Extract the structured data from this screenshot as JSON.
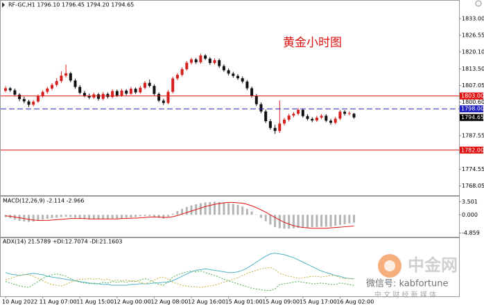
{
  "header": "RF-GC,H1  1796.10 1796.45 1794.20 1794.65",
  "watermark": {
    "title": "中金网",
    "line1": "微信号: kabfortune",
    "line2": "中 文 财 经 新 媒 体"
  },
  "chart_data": [
    {
      "type": "candlestick",
      "title": "黄金小时图",
      "title_color": "#e01010",
      "up_color": "#d62020",
      "down_color": "#111111",
      "categories": [
        "10 Aug 2022",
        null,
        null,
        null,
        null,
        null,
        null,
        null,
        "11 Aug 07:00",
        null,
        null,
        null,
        null,
        null,
        null,
        null,
        "11 Aug 15:00",
        null,
        null,
        null,
        null,
        null,
        null,
        null,
        "12 Aug 00:00",
        null,
        null,
        null,
        null,
        null,
        null,
        null,
        "12 Aug 08:00",
        null,
        null,
        null,
        null,
        null,
        null,
        null,
        "12 Aug 16:00",
        null,
        null,
        null,
        null,
        null,
        null,
        null,
        "15 Aug 01:00",
        null,
        null,
        null,
        null,
        null,
        null,
        null,
        "15 Aug 09:00",
        null,
        null,
        null,
        null,
        null,
        null,
        null,
        "15 Aug 17:00",
        null,
        null,
        null,
        null,
        null,
        null,
        null,
        "16 Aug 02:00",
        null,
        null,
        null
      ],
      "ohlc": [
        [
          1805.0,
          1806.8,
          1804.4,
          1806.0
        ],
        [
          1806.0,
          1806.5,
          1804.6,
          1805.2
        ],
        [
          1805.2,
          1805.9,
          1802.8,
          1803.5
        ],
        [
          1803.5,
          1804.1,
          1801.0,
          1801.8
        ],
        [
          1801.8,
          1802.7,
          1800.2,
          1800.9
        ],
        [
          1800.9,
          1801.5,
          1798.7,
          1799.6
        ],
        [
          1799.6,
          1801.4,
          1799.0,
          1800.8
        ],
        [
          1800.8,
          1803.6,
          1800.3,
          1803.0
        ],
        [
          1803.0,
          1805.2,
          1802.4,
          1804.6
        ],
        [
          1804.6,
          1806.5,
          1803.9,
          1805.9
        ],
        [
          1805.9,
          1808.0,
          1805.2,
          1807.3
        ],
        [
          1807.3,
          1809.9,
          1806.6,
          1808.8
        ],
        [
          1808.8,
          1812.6,
          1808.1,
          1810.9
        ],
        [
          1810.9,
          1815.2,
          1810.2,
          1811.8
        ],
        [
          1811.8,
          1812.4,
          1808.3,
          1809.0
        ],
        [
          1809.0,
          1809.7,
          1805.8,
          1806.5
        ],
        [
          1806.5,
          1807.2,
          1803.6,
          1804.2
        ],
        [
          1804.2,
          1805.0,
          1802.5,
          1803.1
        ],
        [
          1803.1,
          1803.9,
          1801.7,
          1802.4
        ],
        [
          1802.4,
          1804.3,
          1801.8,
          1803.6
        ],
        [
          1803.6,
          1804.2,
          1801.2,
          1801.9
        ],
        [
          1801.9,
          1804.5,
          1801.3,
          1803.8
        ],
        [
          1803.8,
          1804.4,
          1802.0,
          1802.6
        ],
        [
          1802.6,
          1805.6,
          1802.1,
          1804.9
        ],
        [
          1804.9,
          1805.5,
          1802.6,
          1803.2
        ],
        [
          1803.2,
          1805.8,
          1802.7,
          1805.1
        ],
        [
          1805.1,
          1805.7,
          1803.3,
          1803.9
        ],
        [
          1803.9,
          1806.5,
          1803.4,
          1805.8
        ],
        [
          1805.8,
          1806.3,
          1803.8,
          1804.4
        ],
        [
          1804.4,
          1806.9,
          1803.9,
          1806.2
        ],
        [
          1806.2,
          1808.8,
          1805.6,
          1808.1
        ],
        [
          1808.1,
          1809.4,
          1806.3,
          1806.9
        ],
        [
          1806.9,
          1807.5,
          1803.2,
          1803.8
        ],
        [
          1803.8,
          1804.4,
          1800.6,
          1801.2
        ],
        [
          1801.2,
          1801.9,
          1799.5,
          1800.3
        ],
        [
          1800.3,
          1805.3,
          1799.8,
          1804.6
        ],
        [
          1804.6,
          1810.5,
          1804.0,
          1809.8
        ],
        [
          1809.8,
          1811.9,
          1809.1,
          1811.2
        ],
        [
          1811.2,
          1814.1,
          1810.6,
          1813.4
        ],
        [
          1813.4,
          1816.6,
          1812.8,
          1815.9
        ],
        [
          1815.9,
          1817.9,
          1815.2,
          1817.2
        ],
        [
          1817.2,
          1817.8,
          1815.4,
          1816.1
        ],
        [
          1816.1,
          1819.4,
          1815.5,
          1818.7
        ],
        [
          1818.7,
          1819.3,
          1816.9,
          1817.5
        ],
        [
          1817.5,
          1818.1,
          1815.1,
          1815.8
        ],
        [
          1815.8,
          1817.6,
          1815.2,
          1816.9
        ],
        [
          1816.9,
          1817.5,
          1813.9,
          1814.6
        ],
        [
          1814.6,
          1815.3,
          1812.4,
          1813.0
        ],
        [
          1813.0,
          1813.7,
          1811.0,
          1811.7
        ],
        [
          1811.7,
          1812.4,
          1810.1,
          1810.8
        ],
        [
          1810.8,
          1811.5,
          1809.2,
          1809.9
        ],
        [
          1809.9,
          1810.6,
          1807.9,
          1808.6
        ],
        [
          1808.6,
          1809.2,
          1805.3,
          1806.0
        ],
        [
          1806.0,
          1806.7,
          1802.4,
          1803.1
        ],
        [
          1803.1,
          1803.8,
          1799.1,
          1799.8
        ],
        [
          1799.8,
          1800.5,
          1796.3,
          1797.0
        ],
        [
          1797.0,
          1797.7,
          1792.5,
          1793.2
        ],
        [
          1793.2,
          1794.0,
          1789.9,
          1790.6
        ],
        [
          1790.6,
          1791.8,
          1788.3,
          1789.4
        ],
        [
          1789.4,
          1801.2,
          1788.6,
          1792.3
        ],
        [
          1792.3,
          1794.5,
          1791.6,
          1793.8
        ],
        [
          1793.8,
          1796.1,
          1793.1,
          1795.4
        ],
        [
          1795.4,
          1796.8,
          1794.7,
          1796.1
        ],
        [
          1796.1,
          1798.3,
          1795.5,
          1797.6
        ],
        [
          1797.6,
          1798.2,
          1794.6,
          1795.2
        ],
        [
          1795.2,
          1795.9,
          1793.5,
          1794.1
        ],
        [
          1794.1,
          1794.8,
          1792.8,
          1793.5
        ],
        [
          1793.5,
          1795.3,
          1792.9,
          1794.6
        ],
        [
          1794.6,
          1796.0,
          1794.0,
          1795.3
        ],
        [
          1795.3,
          1795.9,
          1792.8,
          1793.4
        ],
        [
          1793.4,
          1794.1,
          1791.8,
          1792.6
        ],
        [
          1792.6,
          1794.9,
          1792.0,
          1794.2
        ],
        [
          1794.2,
          1797.6,
          1793.6,
          1796.9
        ],
        [
          1796.9,
          1797.5,
          1795.4,
          1796.1
        ],
        [
          1796.1,
          1797.0,
          1795.5,
          1796.3
        ],
        [
          1796.1,
          1796.45,
          1794.2,
          1794.65
        ]
      ],
      "ylim": [
        1765,
        1836.5
      ],
      "yticks": [
        {
          "value": 1833,
          "label": "1833.00"
        },
        1826.55,
        {
          "value": 1820.1,
          "label": "1820.10"
        },
        {
          "value": 1813.5,
          "label": "1813.50"
        },
        1807.05,
        {
          "value": 1800.6,
          "label": "1800.60"
        },
        1787.55,
        1774.55,
        1768.05
      ],
      "levels": [
        {
          "value": 1803,
          "label": "1803.00",
          "color": "#e01010",
          "style": "solid"
        },
        {
          "value": 1798,
          "label": "1798.00",
          "color": "#2020c0",
          "style": "dashed"
        },
        {
          "value": 1794.65,
          "color": "#000000",
          "style": "none"
        },
        {
          "value": 1782,
          "label": "1782.00",
          "color": "#e01010",
          "style": "solid"
        }
      ]
    },
    {
      "type": "macd",
      "label": "MACD(12,26,9) -2.114 -2.966",
      "bar_color": "#b4b4b4",
      "signal_color": "#e01010",
      "values": [
        -0.6,
        -0.9,
        -1.3,
        -1.6,
        -1.8,
        -1.9,
        -1.8,
        -1.6,
        -1.3,
        -1.1,
        -0.9,
        -0.8,
        -0.6,
        -0.5,
        -0.6,
        -0.8,
        -1.0,
        -1.1,
        -1.2,
        -1.2,
        -1.2,
        -1.1,
        -1.1,
        -1.0,
        -1.0,
        -0.9,
        -0.8,
        -0.7,
        -0.6,
        -0.4,
        -0.3,
        -0.3,
        -0.5,
        -0.8,
        -1.0,
        -0.5,
        0.3,
        1.0,
        1.6,
        2.1,
        2.5,
        2.8,
        3.1,
        3.3,
        3.4,
        3.5,
        3.4,
        3.3,
        3.1,
        2.9,
        2.6,
        2.2,
        1.6,
        0.9,
        0.1,
        -0.8,
        -1.7,
        -2.6,
        -3.3,
        -3.6,
        -3.7,
        -3.7,
        -3.6,
        -3.5,
        -3.4,
        -3.4,
        -3.3,
        -3.3,
        -3.2,
        -3.2,
        -3.2,
        -2.9,
        -2.7,
        -2.5,
        -2.3,
        -2.114
      ],
      "signal": [
        -0.3,
        -0.4,
        -0.6,
        -0.8,
        -1.0,
        -1.2,
        -1.4,
        -1.5,
        -1.5,
        -1.5,
        -1.4,
        -1.3,
        -1.2,
        -1.1,
        -1.0,
        -1.0,
        -1.0,
        -1.0,
        -1.1,
        -1.1,
        -1.1,
        -1.1,
        -1.1,
        -1.1,
        -1.1,
        -1.0,
        -1.0,
        -0.9,
        -0.9,
        -0.8,
        -0.7,
        -0.6,
        -0.6,
        -0.6,
        -0.7,
        -0.7,
        -0.5,
        -0.2,
        0.2,
        0.6,
        1.0,
        1.4,
        1.8,
        2.2,
        2.5,
        2.8,
        3.0,
        3.2,
        3.3,
        3.3,
        3.2,
        3.1,
        2.8,
        2.4,
        1.9,
        1.3,
        0.7,
        0.0,
        -0.7,
        -1.4,
        -2.0,
        -2.5,
        -2.9,
        -3.2,
        -3.4,
        -3.5,
        -3.6,
        -3.6,
        -3.6,
        -3.6,
        -3.5,
        -3.4,
        -3.3,
        -3.2,
        -3.1,
        -2.966
      ],
      "ylim": [
        -5.5,
        4.3
      ],
      "yticks": [
        3.501,
        {
          "value": 0,
          "label": "0.000"
        },
        -4.859
      ]
    },
    {
      "type": "line",
      "label": "ADX(14) 21.5789 +DI:12.7074 -DI:21.1603",
      "ylim": [
        0,
        65
      ],
      "series": [
        {
          "color": "#4fb3c6",
          "dashed": false,
          "values": [
            30,
            28,
            27,
            26,
            27,
            28,
            29,
            28,
            27,
            25,
            24,
            23,
            22,
            21,
            20,
            19,
            18,
            17,
            16,
            15,
            15,
            14,
            14,
            13,
            13,
            13,
            13,
            14,
            14,
            15,
            15,
            15,
            16,
            16,
            17,
            17,
            19,
            22,
            25,
            28,
            31,
            33,
            34,
            35,
            34,
            33,
            32,
            31,
            30,
            30,
            31,
            33,
            36,
            40,
            44,
            48,
            52,
            55,
            56,
            55,
            54,
            52,
            50,
            47,
            44,
            41,
            38,
            35,
            32,
            30,
            28,
            26,
            25,
            23,
            22,
            21.5789
          ]
        },
        {
          "color": "#4caf50",
          "dashed": true,
          "values": [
            18,
            16,
            14,
            12,
            11,
            10,
            14,
            18,
            22,
            25,
            27,
            28,
            27,
            25,
            22,
            19,
            17,
            16,
            15,
            16,
            15,
            17,
            16,
            18,
            17,
            18,
            17,
            19,
            18,
            20,
            22,
            20,
            17,
            14,
            13,
            18,
            24,
            27,
            29,
            31,
            32,
            31,
            32,
            30,
            28,
            26,
            24,
            21,
            19,
            17,
            15,
            13,
            11,
            9,
            8,
            7,
            6,
            6,
            8,
            14,
            15,
            16,
            17,
            18,
            17,
            16,
            15,
            15,
            16,
            15,
            14,
            14,
            16,
            15,
            14,
            12.7074
          ]
        },
        {
          "color": "#c4ae3c",
          "dashed": true,
          "values": [
            20,
            22,
            24,
            26,
            27,
            27,
            25,
            22,
            19,
            16,
            14,
            13,
            12,
            14,
            17,
            19,
            21,
            21,
            22,
            21,
            22,
            20,
            21,
            19,
            20,
            19,
            20,
            18,
            19,
            17,
            15,
            17,
            20,
            23,
            24,
            21,
            17,
            15,
            13,
            12,
            11,
            11,
            10,
            11,
            12,
            13,
            15,
            17,
            19,
            21,
            23,
            26,
            29,
            31,
            33,
            35,
            36,
            37,
            34,
            29,
            27,
            25,
            24,
            22,
            23,
            24,
            25,
            25,
            24,
            25,
            26,
            26,
            23,
            22,
            22,
            21.1603
          ]
        }
      ]
    }
  ]
}
